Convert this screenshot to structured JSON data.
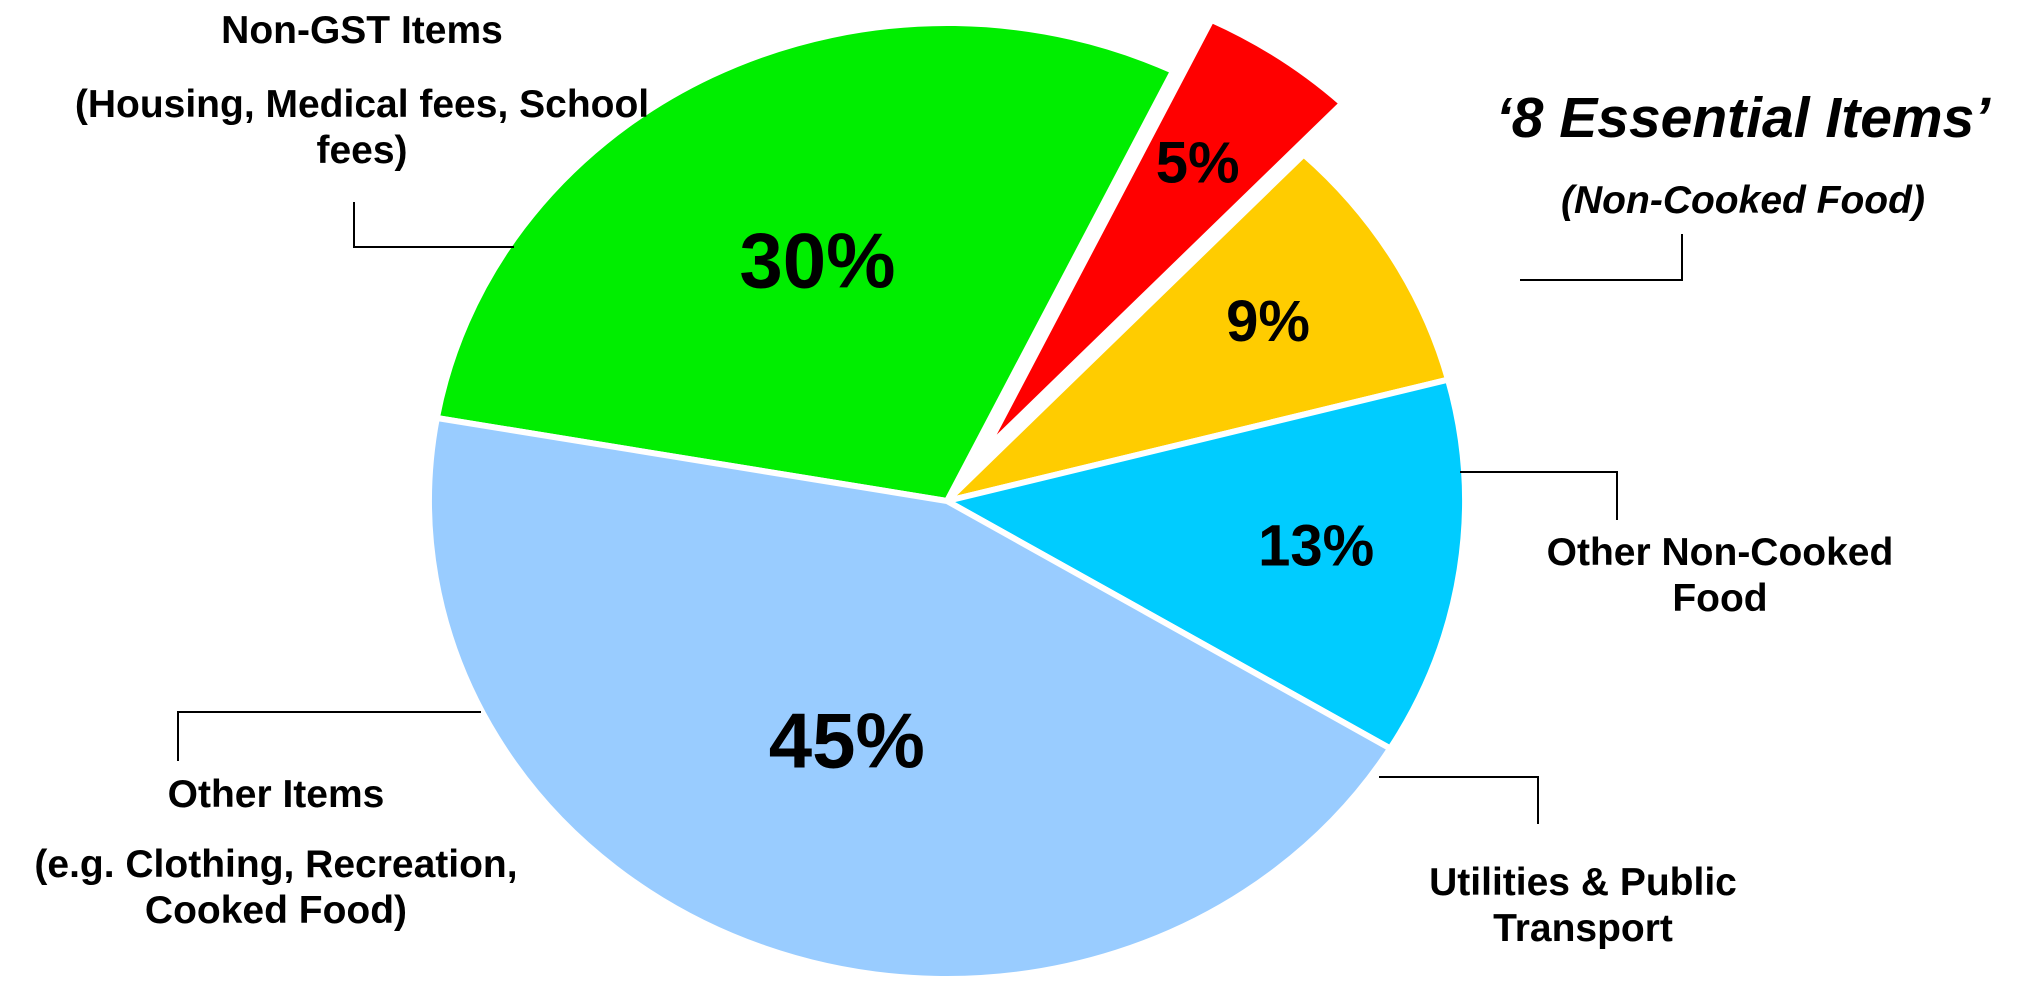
{
  "chart_data": {
    "type": "pie",
    "categories": [
      "Non-GST Items",
      "‘8 Essential Items’",
      "Other Non-Cooked Food",
      "Utilities & Public Transport",
      "Other Items"
    ],
    "descriptions": [
      "(Housing, Medical fees, School fees)",
      "(Non-Cooked Food)",
      null,
      null,
      "(e.g. Clothing, Recreation, Cooked Food)"
    ],
    "values": [
      30,
      5,
      9,
      13,
      45
    ],
    "value_labels": [
      "30%",
      "5%",
      "9%",
      "13%",
      "45%"
    ],
    "colors": [
      "#00ee00",
      "#ff0000",
      "#ffcc00",
      "#00ccff",
      "#99ccff"
    ],
    "exploded": [
      false,
      true,
      false,
      false,
      false
    ]
  }
}
